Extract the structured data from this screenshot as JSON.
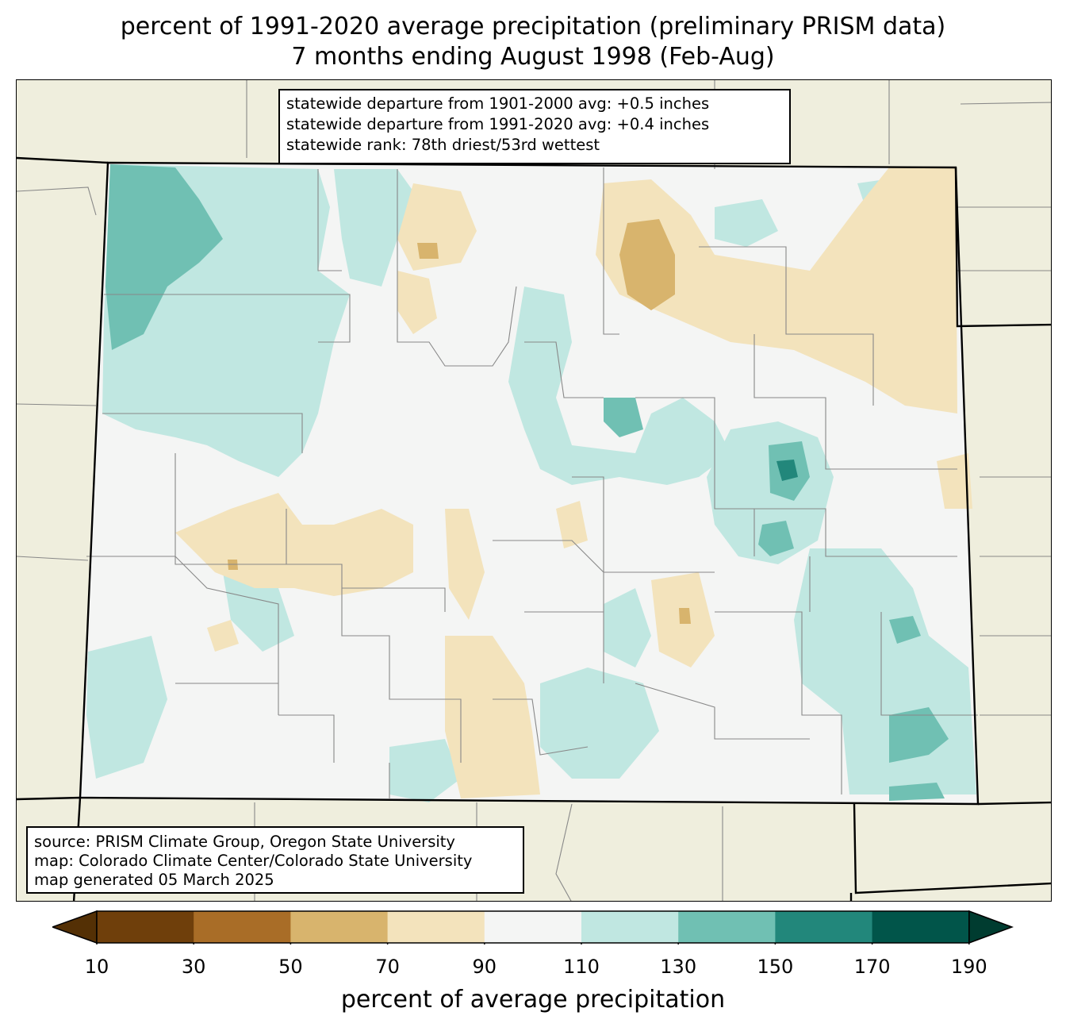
{
  "title": {
    "line1": "percent of 1991-2020 average precipitation (preliminary PRISM data)",
    "line2": "7 months ending August 1998 (Feb-Aug)"
  },
  "stats_box": {
    "line1": "statewide departure from 1901-2000 avg: +0.5 inches",
    "line2": "statewide departure from 1991-2020 avg: +0.4 inches",
    "line3": "statewide rank: 78th driest/53rd wettest"
  },
  "source_box": {
    "line1": "source: PRISM Climate Group, Oregon State University",
    "line2": "map: Colorado Climate Center/Colorado State University",
    "line3": "map generated 05 March 2025"
  },
  "colorbar": {
    "label": "percent of average precipitation",
    "ticks": [
      "10",
      "30",
      "50",
      "70",
      "90",
      "110",
      "130",
      "150",
      "170",
      "190"
    ],
    "colors": [
      "#543005",
      "#6f3f0b",
      "#a96d27",
      "#d8b46d",
      "#f3e3bc",
      "#f4f5f4",
      "#c0e7e1",
      "#70c0b3",
      "#22877b",
      "#01554a",
      "#003c30"
    ]
  },
  "map_colors": {
    "background": "#efeedd",
    "county_lines": "#888888",
    "state_lines": "#000000"
  }
}
